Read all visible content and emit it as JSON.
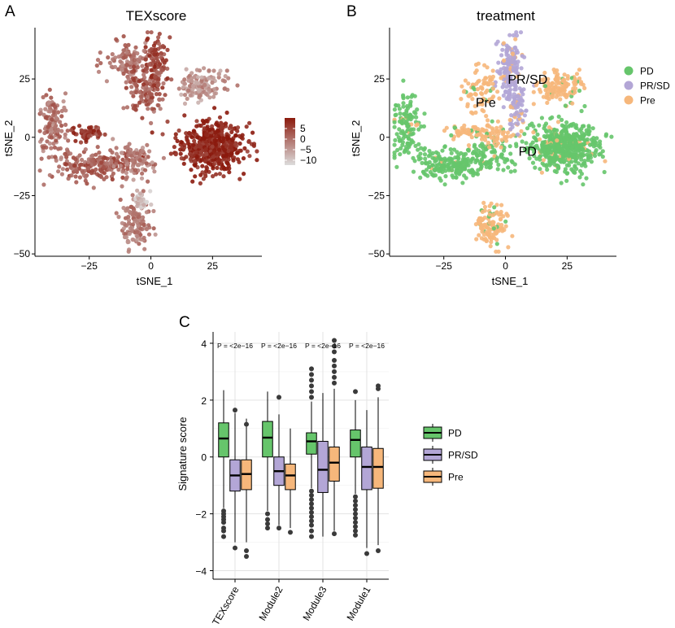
{
  "panels": {
    "a": "A",
    "b": "B",
    "c": "C"
  },
  "chart_data": [
    {
      "type": "scatter",
      "title": "TEXscore",
      "xlabel": "tSNE_1",
      "ylabel": "tSNE_2",
      "xlim": [
        -47,
        45
      ],
      "ylim": [
        -51,
        47
      ],
      "xticks": [
        "-25",
        "0",
        "25"
      ],
      "yticks": [
        "25",
        "0",
        "-25",
        "-50"
      ],
      "color_legend": {
        "labels": [
          "5",
          "0",
          "-5",
          "-10"
        ],
        "low_color": "#dcdcdc",
        "high_color": "#8b1a0d"
      },
      "clusters": [
        {
          "x": 24,
          "y": -4,
          "spread_x": 9,
          "spread_y": 7,
          "n": 520,
          "score": 5
        },
        {
          "x": -40,
          "y": 5,
          "spread_x": 4,
          "spread_y": 10,
          "n": 130,
          "score": -2
        },
        {
          "x": -22,
          "y": -12,
          "spread_x": 10,
          "spread_y": 4,
          "n": 180,
          "score": 0
        },
        {
          "x": -6,
          "y": -10,
          "spread_x": 6,
          "spread_y": 5,
          "n": 90,
          "score": -3
        },
        {
          "x": -8,
          "y": 33,
          "spread_x": 7,
          "spread_y": 5,
          "n": 110,
          "score": -2
        },
        {
          "x": -2,
          "y": 20,
          "spread_x": 5,
          "spread_y": 7,
          "n": 110,
          "score": 0
        },
        {
          "x": 2,
          "y": 31,
          "spread_x": 3,
          "spread_y": 8,
          "n": 90,
          "score": 2
        },
        {
          "x": 21,
          "y": 22,
          "spread_x": 6,
          "spread_y": 5,
          "n": 130,
          "score": -5
        },
        {
          "x": -6,
          "y": -38,
          "spread_x": 4,
          "spread_y": 7,
          "n": 120,
          "score": -3
        },
        {
          "x": -4,
          "y": -27,
          "spread_x": 2,
          "spread_y": 3,
          "n": 40,
          "score": -9
        },
        {
          "x": -26,
          "y": 2,
          "spread_x": 4,
          "spread_y": 2,
          "n": 60,
          "score": 3
        }
      ]
    },
    {
      "type": "scatter",
      "title": "treatment",
      "xlabel": "tSNE_1",
      "ylabel": "tSNE_2",
      "xlim": [
        -47,
        45
      ],
      "ylim": [
        -51,
        47
      ],
      "xticks": [
        "-25",
        "0",
        "25"
      ],
      "yticks": [
        "25",
        "0",
        "-25",
        "-50"
      ],
      "legend": {
        "position": "right",
        "items": [
          {
            "label": "PD",
            "color": "#66c56b"
          },
          {
            "label": "PR/SD",
            "color": "#b3a6d6"
          },
          {
            "label": "Pre",
            "color": "#f6b77b"
          }
        ]
      },
      "annotations": [
        {
          "text": "PR/SD",
          "x": 9,
          "y": 23
        },
        {
          "text": "Pre",
          "x": -8,
          "y": 13
        },
        {
          "text": "PD",
          "x": 9,
          "y": -8
        }
      ],
      "clusters": [
        {
          "x": 24,
          "y": -4,
          "spread_x": 9,
          "spread_y": 7,
          "n": 520,
          "group": "PD"
        },
        {
          "x": -40,
          "y": 5,
          "spread_x": 4,
          "spread_y": 10,
          "n": 130,
          "group": "PD"
        },
        {
          "x": -22,
          "y": -12,
          "spread_x": 10,
          "spread_y": 4,
          "n": 180,
          "group": "PD"
        },
        {
          "x": -8,
          "y": -8,
          "spread_x": 7,
          "spread_y": 5,
          "n": 100,
          "group": "PD"
        },
        {
          "x": -4,
          "y": 1,
          "spread_x": 6,
          "spread_y": 3,
          "n": 60,
          "group": "Pre"
        },
        {
          "x": 2,
          "y": 29,
          "spread_x": 3,
          "spread_y": 10,
          "n": 160,
          "group": "PR/SD"
        },
        {
          "x": 4,
          "y": 12,
          "spread_x": 3,
          "spread_y": 6,
          "n": 70,
          "group": "PR/SD"
        },
        {
          "x": -10,
          "y": 20,
          "spread_x": 5,
          "spread_y": 6,
          "n": 80,
          "group": "Pre"
        },
        {
          "x": 22,
          "y": 22,
          "spread_x": 6,
          "spread_y": 5,
          "n": 130,
          "group": "Pre"
        },
        {
          "x": -6,
          "y": -38,
          "spread_x": 4,
          "spread_y": 7,
          "n": 120,
          "group": "Pre"
        },
        {
          "x": -15,
          "y": 2,
          "spread_x": 6,
          "spread_y": 2,
          "n": 50,
          "group": "Pre"
        }
      ]
    },
    {
      "type": "box",
      "xlabel": "",
      "ylabel": "Signature score",
      "ylim": [
        -4.3,
        4.4
      ],
      "yticks": [
        -4,
        -2,
        0,
        2,
        4
      ],
      "categories": [
        "TEXscore",
        "Module2",
        "Module3",
        "Module1"
      ],
      "pvalues": [
        "P = <2e−16",
        "P = <2e−16",
        "P = <2e−16",
        "P = <2e−16"
      ],
      "legend": {
        "position": "right",
        "items": [
          {
            "label": "PD",
            "color": "#66c56b"
          },
          {
            "label": "PR/SD",
            "color": "#b3a6d6"
          },
          {
            "label": "Pre",
            "color": "#f6b77b"
          }
        ]
      },
      "series": [
        {
          "name": "PD",
          "color": "#66c56b",
          "boxes": [
            {
              "q1": 0.0,
              "median": 0.65,
              "q3": 1.2,
              "whisker_low": -1.8,
              "whisker_high": 2.35,
              "outliers": [
                -1.9,
                -2.0,
                -2.1,
                -2.2,
                -2.3,
                -2.5,
                -2.6,
                -2.8
              ]
            },
            {
              "q1": 0.0,
              "median": 0.68,
              "q3": 1.25,
              "whisker_low": -1.9,
              "whisker_high": 2.3,
              "outliers": [
                -2.0,
                -2.2,
                -2.35,
                -2.5
              ]
            },
            {
              "q1": 0.1,
              "median": 0.55,
              "q3": 0.85,
              "whisker_low": -1.1,
              "whisker_high": 1.95,
              "outliers": [
                2.1,
                2.3,
                2.5,
                2.7,
                2.9,
                3.1,
                -1.2,
                -1.35,
                -1.5,
                -1.65,
                -1.8,
                -1.95,
                -2.1,
                -2.25,
                -2.4,
                -2.6,
                -2.8
              ]
            },
            {
              "q1": 0.0,
              "median": 0.6,
              "q3": 0.95,
              "whisker_low": -1.3,
              "whisker_high": 2.0,
              "outliers": [
                2.3,
                -1.4,
                -1.55,
                -1.7,
                -1.85,
                -2.0,
                -2.15,
                -2.3,
                -2.45,
                -2.6,
                -2.75
              ]
            }
          ]
        },
        {
          "name": "PR/SD",
          "color": "#b3a6d6",
          "boxes": [
            {
              "q1": -1.2,
              "median": -0.65,
              "q3": -0.1,
              "whisker_low": -3.0,
              "whisker_high": 1.55,
              "outliers": [
                1.65,
                -3.2
              ]
            },
            {
              "q1": -1.0,
              "median": -0.5,
              "q3": 0.0,
              "whisker_low": -2.4,
              "whisker_high": 1.5,
              "outliers": [
                2.1,
                -2.5
              ]
            },
            {
              "q1": -1.25,
              "median": -0.45,
              "q3": 0.55,
              "whisker_low": -2.8,
              "whisker_high": 2.25,
              "outliers": []
            },
            {
              "q1": -1.15,
              "median": -0.35,
              "q3": 0.35,
              "whisker_low": -3.2,
              "whisker_high": 1.65,
              "outliers": [
                -3.4
              ]
            }
          ]
        },
        {
          "name": "Pre",
          "color": "#f6b77b",
          "boxes": [
            {
              "q1": -1.15,
              "median": -0.6,
              "q3": -0.1,
              "whisker_low": -3.0,
              "whisker_high": 1.35,
              "outliers": [
                1.15,
                -3.3,
                -3.5
              ]
            },
            {
              "q1": -1.15,
              "median": -0.65,
              "q3": -0.25,
              "whisker_low": -2.5,
              "whisker_high": 1.0,
              "outliers": [
                -2.65
              ]
            },
            {
              "q1": -0.85,
              "median": -0.2,
              "q3": 0.35,
              "whisker_low": -2.6,
              "whisker_high": 2.4,
              "outliers": [
                2.6,
                2.8,
                3.0,
                3.2,
                3.4,
                3.7,
                3.9,
                4.1,
                -2.7
              ]
            },
            {
              "q1": -1.1,
              "median": -0.35,
              "q3": 0.3,
              "whisker_low": -3.1,
              "whisker_high": 2.1,
              "outliers": [
                2.4,
                2.5,
                -3.3
              ]
            }
          ]
        }
      ]
    }
  ]
}
